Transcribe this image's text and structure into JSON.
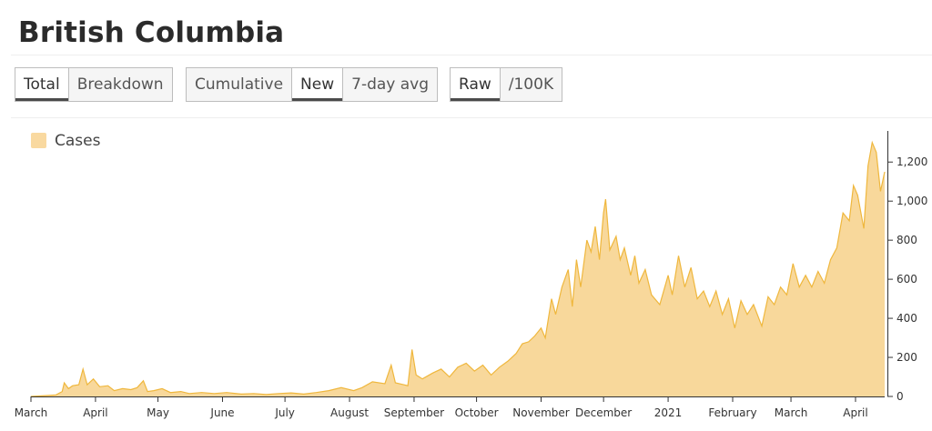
{
  "page": {
    "title": "British Columbia"
  },
  "controls": {
    "group1": [
      {
        "label": "Total",
        "active": true
      },
      {
        "label": "Breakdown",
        "active": false
      }
    ],
    "group2": [
      {
        "label": "Cumulative",
        "active": false
      },
      {
        "label": "New",
        "active": true
      },
      {
        "label": "7-day avg",
        "active": false
      }
    ],
    "group3": [
      {
        "label": "Raw",
        "active": true
      },
      {
        "label": "/100K",
        "active": false
      }
    ]
  },
  "colors": {
    "fill": "#f8d89b",
    "stroke": "#efb73d",
    "legend_swatch": "#f9d9a0",
    "axis": "#333333"
  },
  "chart_data": {
    "type": "area",
    "title": "",
    "xlabel": "",
    "ylabel": "",
    "legend": {
      "position": "top-left",
      "entries": [
        "Cases"
      ]
    },
    "grid": false,
    "start_date": "2020-03-01",
    "end_date": "2021-04-15",
    "ylim": [
      0,
      1350
    ],
    "yticks": [
      0,
      200,
      400,
      600,
      800,
      1000,
      1200
    ],
    "ytick_labels": [
      "0",
      "200",
      "400",
      "600",
      "800",
      "1,000",
      "1,200"
    ],
    "xtick_labels": [
      {
        "label": "March",
        "date": "2020-03-01"
      },
      {
        "label": "April",
        "date": "2020-04-01"
      },
      {
        "label": "May",
        "date": "2020-05-01"
      },
      {
        "label": "June",
        "date": "2020-06-01"
      },
      {
        "label": "July",
        "date": "2020-07-01"
      },
      {
        "label": "August",
        "date": "2020-08-01"
      },
      {
        "label": "September",
        "date": "2020-09-01"
      },
      {
        "label": "October",
        "date": "2020-10-01"
      },
      {
        "label": "November",
        "date": "2020-11-01"
      },
      {
        "label": "December",
        "date": "2020-12-01"
      },
      {
        "label": "2021",
        "date": "2021-01-01"
      },
      {
        "label": "February",
        "date": "2021-02-01"
      },
      {
        "label": "March",
        "date": "2021-03-01"
      },
      {
        "label": "April",
        "date": "2021-04-01"
      }
    ],
    "series": [
      {
        "name": "Cases",
        "points": [
          [
            "2020-03-01",
            0
          ],
          [
            "2020-03-08",
            4
          ],
          [
            "2020-03-13",
            8
          ],
          [
            "2020-03-16",
            25
          ],
          [
            "2020-03-17",
            70
          ],
          [
            "2020-03-19",
            40
          ],
          [
            "2020-03-21",
            55
          ],
          [
            "2020-03-24",
            60
          ],
          [
            "2020-03-26",
            140
          ],
          [
            "2020-03-28",
            60
          ],
          [
            "2020-03-31",
            90
          ],
          [
            "2020-04-03",
            50
          ],
          [
            "2020-04-07",
            55
          ],
          [
            "2020-04-10",
            30
          ],
          [
            "2020-04-14",
            40
          ],
          [
            "2020-04-18",
            35
          ],
          [
            "2020-04-21",
            45
          ],
          [
            "2020-04-24",
            80
          ],
          [
            "2020-04-26",
            25
          ],
          [
            "2020-04-29",
            30
          ],
          [
            "2020-05-03",
            40
          ],
          [
            "2020-05-07",
            20
          ],
          [
            "2020-05-12",
            25
          ],
          [
            "2020-05-16",
            15
          ],
          [
            "2020-05-22",
            20
          ],
          [
            "2020-05-28",
            15
          ],
          [
            "2020-06-03",
            20
          ],
          [
            "2020-06-10",
            12
          ],
          [
            "2020-06-16",
            15
          ],
          [
            "2020-06-22",
            10
          ],
          [
            "2020-06-28",
            15
          ],
          [
            "2020-07-04",
            18
          ],
          [
            "2020-07-10",
            12
          ],
          [
            "2020-07-16",
            20
          ],
          [
            "2020-07-22",
            30
          ],
          [
            "2020-07-28",
            45
          ],
          [
            "2020-08-03",
            30
          ],
          [
            "2020-08-07",
            45
          ],
          [
            "2020-08-12",
            75
          ],
          [
            "2020-08-18",
            65
          ],
          [
            "2020-08-21",
            160
          ],
          [
            "2020-08-23",
            70
          ],
          [
            "2020-08-27",
            60
          ],
          [
            "2020-08-29",
            55
          ],
          [
            "2020-08-31",
            240
          ],
          [
            "2020-09-02",
            110
          ],
          [
            "2020-09-05",
            90
          ],
          [
            "2020-09-10",
            120
          ],
          [
            "2020-09-14",
            140
          ],
          [
            "2020-09-18",
            100
          ],
          [
            "2020-09-22",
            150
          ],
          [
            "2020-09-26",
            170
          ],
          [
            "2020-09-30",
            130
          ],
          [
            "2020-10-04",
            160
          ],
          [
            "2020-10-08",
            110
          ],
          [
            "2020-10-12",
            150
          ],
          [
            "2020-10-16",
            180
          ],
          [
            "2020-10-20",
            220
          ],
          [
            "2020-10-23",
            270
          ],
          [
            "2020-10-26",
            280
          ],
          [
            "2020-10-29",
            310
          ],
          [
            "2020-11-01",
            350
          ],
          [
            "2020-11-03",
            300
          ],
          [
            "2020-11-06",
            500
          ],
          [
            "2020-11-08",
            420
          ],
          [
            "2020-11-11",
            560
          ],
          [
            "2020-11-14",
            650
          ],
          [
            "2020-11-16",
            460
          ],
          [
            "2020-11-18",
            700
          ],
          [
            "2020-11-20",
            560
          ],
          [
            "2020-11-23",
            800
          ],
          [
            "2020-11-25",
            740
          ],
          [
            "2020-11-27",
            870
          ],
          [
            "2020-11-29",
            700
          ],
          [
            "2020-12-01",
            940
          ],
          [
            "2020-12-02",
            1010
          ],
          [
            "2020-12-04",
            750
          ],
          [
            "2020-12-07",
            820
          ],
          [
            "2020-12-09",
            700
          ],
          [
            "2020-12-11",
            760
          ],
          [
            "2020-12-14",
            620
          ],
          [
            "2020-12-16",
            720
          ],
          [
            "2020-12-18",
            580
          ],
          [
            "2020-12-21",
            650
          ],
          [
            "2020-12-24",
            520
          ],
          [
            "2020-12-28",
            470
          ],
          [
            "2021-01-01",
            620
          ],
          [
            "2021-01-03",
            520
          ],
          [
            "2021-01-06",
            720
          ],
          [
            "2021-01-09",
            560
          ],
          [
            "2021-01-12",
            660
          ],
          [
            "2021-01-15",
            500
          ],
          [
            "2021-01-18",
            540
          ],
          [
            "2021-01-21",
            460
          ],
          [
            "2021-01-24",
            540
          ],
          [
            "2021-01-27",
            420
          ],
          [
            "2021-01-30",
            500
          ],
          [
            "2021-02-02",
            350
          ],
          [
            "2021-02-05",
            490
          ],
          [
            "2021-02-08",
            420
          ],
          [
            "2021-02-11",
            470
          ],
          [
            "2021-02-15",
            360
          ],
          [
            "2021-02-18",
            510
          ],
          [
            "2021-02-21",
            470
          ],
          [
            "2021-02-24",
            560
          ],
          [
            "2021-02-27",
            520
          ],
          [
            "2021-03-02",
            680
          ],
          [
            "2021-03-05",
            560
          ],
          [
            "2021-03-08",
            620
          ],
          [
            "2021-03-11",
            560
          ],
          [
            "2021-03-14",
            640
          ],
          [
            "2021-03-17",
            580
          ],
          [
            "2021-03-20",
            700
          ],
          [
            "2021-03-23",
            760
          ],
          [
            "2021-03-26",
            940
          ],
          [
            "2021-03-29",
            900
          ],
          [
            "2021-03-31",
            1080
          ],
          [
            "2021-04-02",
            1030
          ],
          [
            "2021-04-05",
            860
          ],
          [
            "2021-04-07",
            1180
          ],
          [
            "2021-04-09",
            1300
          ],
          [
            "2021-04-11",
            1250
          ],
          [
            "2021-04-13",
            1050
          ],
          [
            "2021-04-14",
            1100
          ],
          [
            "2021-04-15",
            1150
          ]
        ]
      }
    ]
  }
}
